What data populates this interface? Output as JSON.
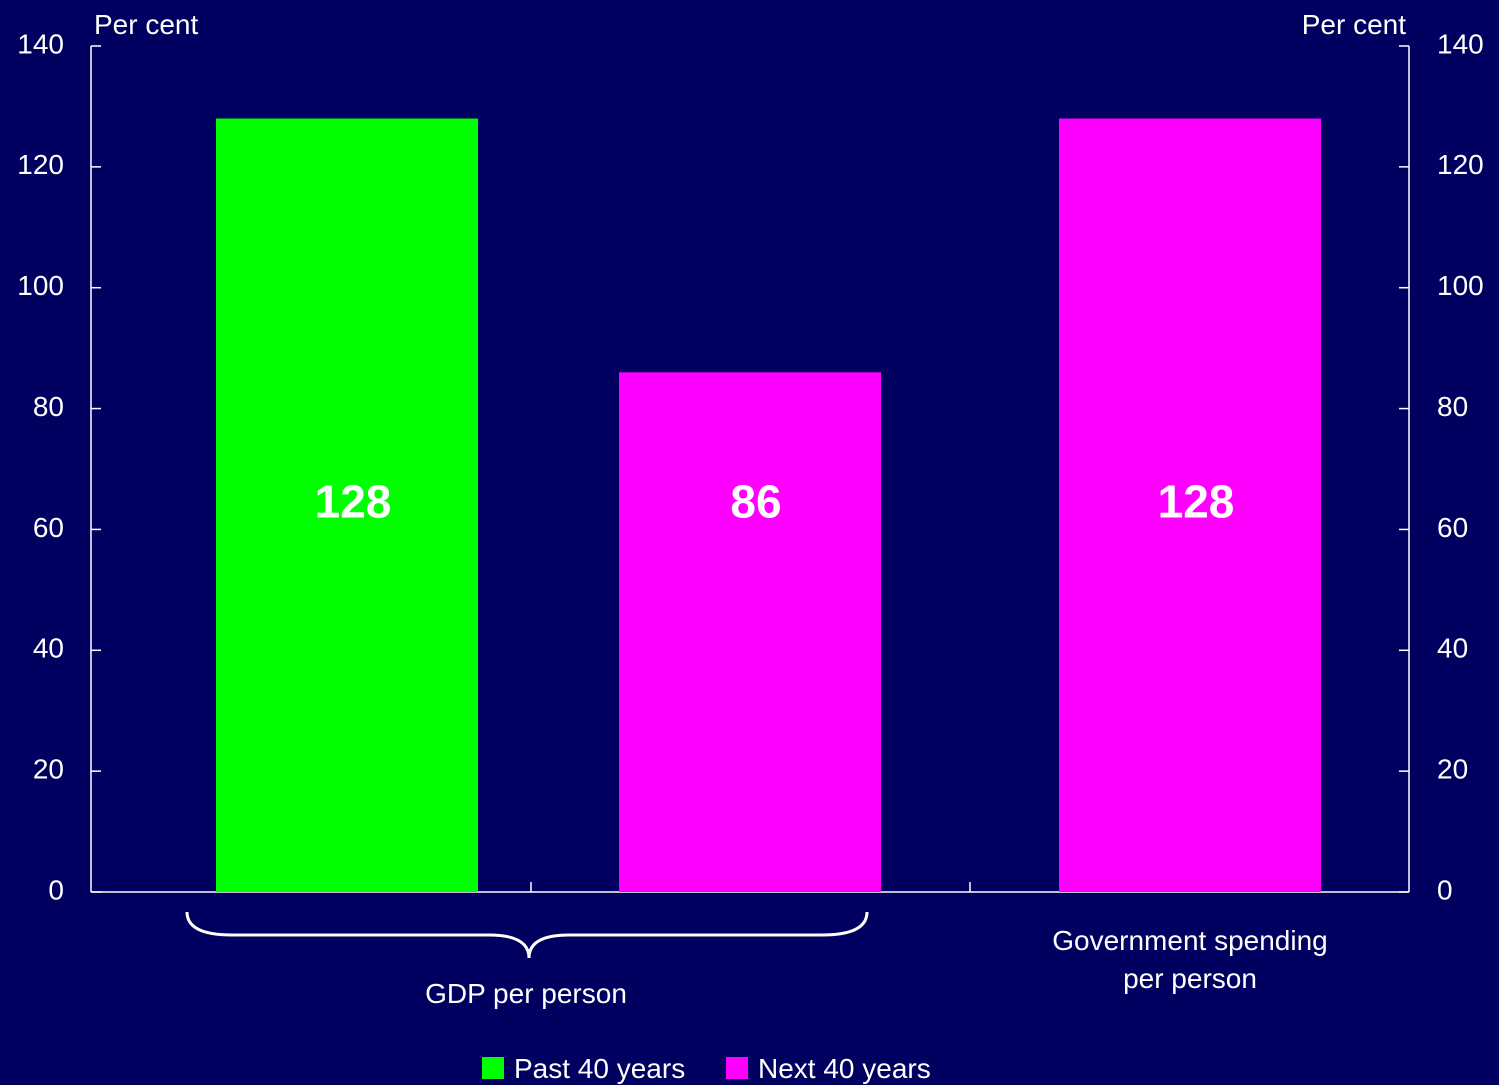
{
  "chart_data": {
    "type": "bar",
    "y_axis_left_label": "Per cent",
    "y_axis_right_label": "Per cent",
    "ylim": [
      0,
      140
    ],
    "yticks": [
      0,
      20,
      40,
      60,
      80,
      100,
      120,
      140
    ],
    "grid": false,
    "groups": [
      {
        "label": "GDP per person",
        "bars": [
          {
            "series": "Past 40 years",
            "value": 128,
            "data_label": "128"
          },
          {
            "series": "Next 40 years",
            "value": 86,
            "data_label": "86"
          }
        ]
      },
      {
        "label": "Government spending\nper person",
        "bars": [
          {
            "series": "Next 40 years",
            "value": 128,
            "data_label": "128"
          }
        ]
      }
    ],
    "legend": {
      "placement": "bottom-center",
      "entries": [
        {
          "name": "Past 40 years",
          "color": "#00ff00"
        },
        {
          "name": "Next 40 years",
          "color": "#ff00ff"
        }
      ]
    }
  },
  "colors": {
    "background": "#000060",
    "axis": "#ffffff",
    "text": "#ffffff",
    "past": "#00ff00",
    "next": "#ff00ff"
  }
}
